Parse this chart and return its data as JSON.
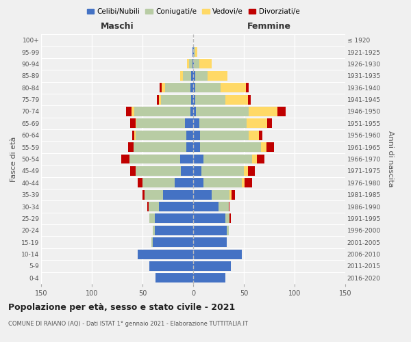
{
  "age_groups": [
    "0-4",
    "5-9",
    "10-14",
    "15-19",
    "20-24",
    "25-29",
    "30-34",
    "35-39",
    "40-44",
    "45-49",
    "50-54",
    "55-59",
    "60-64",
    "65-69",
    "70-74",
    "75-79",
    "80-84",
    "85-89",
    "90-94",
    "95-99",
    "100+"
  ],
  "birth_years": [
    "2016-2020",
    "2011-2015",
    "2006-2010",
    "2001-2005",
    "1996-2000",
    "1991-1995",
    "1986-1990",
    "1981-1985",
    "1976-1980",
    "1971-1975",
    "1966-1970",
    "1961-1965",
    "1956-1960",
    "1951-1955",
    "1946-1950",
    "1941-1945",
    "1936-1940",
    "1931-1935",
    "1926-1930",
    "1921-1925",
    "≤ 1920"
  ],
  "male": {
    "celibi": [
      37,
      43,
      55,
      40,
      38,
      38,
      34,
      30,
      18,
      12,
      13,
      7,
      7,
      8,
      3,
      2,
      3,
      2,
      1,
      1,
      0
    ],
    "coniugati": [
      0,
      0,
      0,
      1,
      2,
      5,
      10,
      18,
      32,
      45,
      50,
      52,
      50,
      48,
      55,
      30,
      25,
      8,
      3,
      0,
      0
    ],
    "vedovi": [
      0,
      0,
      0,
      0,
      0,
      0,
      0,
      0,
      0,
      0,
      0,
      0,
      1,
      1,
      3,
      2,
      3,
      3,
      2,
      0,
      0
    ],
    "divorziati": [
      0,
      0,
      0,
      0,
      0,
      0,
      1,
      2,
      5,
      5,
      8,
      5,
      2,
      5,
      5,
      2,
      2,
      0,
      0,
      0,
      0
    ]
  },
  "female": {
    "nubili": [
      32,
      37,
      48,
      33,
      33,
      32,
      25,
      18,
      10,
      8,
      10,
      7,
      7,
      6,
      3,
      2,
      2,
      2,
      1,
      1,
      0
    ],
    "coniugate": [
      0,
      0,
      0,
      0,
      2,
      4,
      10,
      18,
      38,
      42,
      48,
      60,
      48,
      47,
      52,
      30,
      25,
      12,
      5,
      1,
      0
    ],
    "vedove": [
      0,
      0,
      0,
      0,
      0,
      0,
      0,
      2,
      3,
      4,
      5,
      5,
      10,
      20,
      28,
      22,
      25,
      20,
      12,
      2,
      0
    ],
    "divorziate": [
      0,
      0,
      0,
      0,
      0,
      1,
      1,
      3,
      7,
      7,
      7,
      8,
      3,
      5,
      8,
      3,
      3,
      0,
      0,
      0,
      0
    ]
  },
  "colors": {
    "celibi": "#4472c4",
    "coniugati": "#b8cca4",
    "vedovi": "#ffd966",
    "divorziati": "#c00000"
  },
  "title": "Popolazione per età, sesso e stato civile - 2021",
  "subtitle": "COMUNE DI RAIANO (AQ) - Dati ISTAT 1° gennaio 2021 - Elaborazione TUTTITALIA.IT",
  "maschi_label": "Maschi",
  "femmine_label": "Femmine",
  "ylabel_left": "Fasce di età",
  "ylabel_right": "Anni di nascita",
  "xlim": 150,
  "legend_labels": [
    "Celibi/Nubili",
    "Coniugati/e",
    "Vedovi/e",
    "Divorziati/e"
  ],
  "bg_color": "#f0f0f0"
}
